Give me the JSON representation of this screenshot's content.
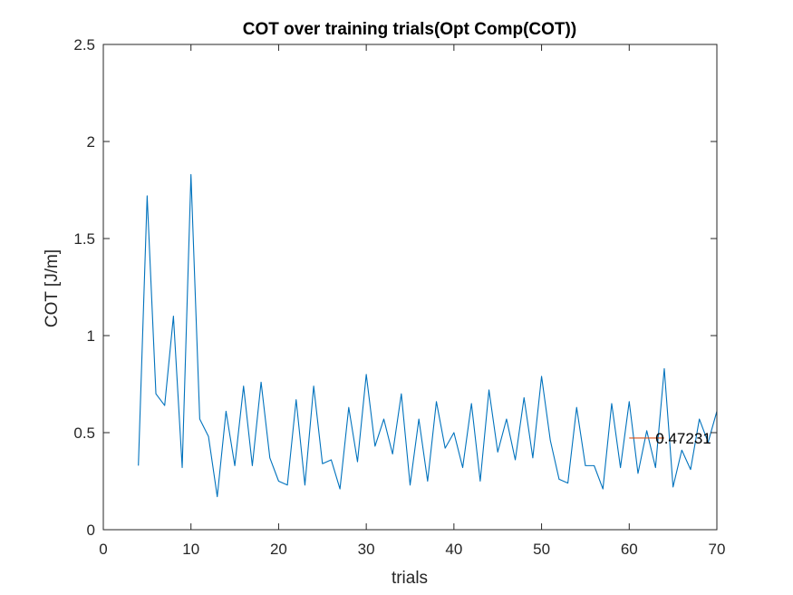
{
  "chart_data": {
    "type": "line",
    "title": "COT over training trials(Opt Comp(COT))",
    "xlabel": "trials",
    "ylabel": "COT [J/m]",
    "xlim": [
      0,
      70
    ],
    "ylim": [
      0,
      2.5
    ],
    "xticks": [
      0,
      10,
      20,
      30,
      40,
      50,
      60,
      70
    ],
    "yticks": [
      0,
      0.5,
      1,
      1.5,
      2,
      2.5
    ],
    "xtick_labels": [
      "0",
      "10",
      "20",
      "30",
      "40",
      "50",
      "60",
      "70"
    ],
    "ytick_labels": [
      "0",
      "0.5",
      "1",
      "1.5",
      "2",
      "2.5"
    ],
    "grid": false,
    "series": [
      {
        "color": "#0072bd",
        "x": [
          4,
          5,
          6,
          7,
          8,
          9,
          10,
          11,
          12,
          13,
          14,
          15,
          16,
          17,
          18,
          19,
          20,
          21,
          22,
          23,
          24,
          25,
          26,
          27,
          28,
          29,
          30,
          31,
          32,
          33,
          34,
          35,
          36,
          37,
          38,
          39,
          40,
          41,
          42,
          43,
          44,
          45,
          46,
          47,
          48,
          49,
          50,
          51,
          52,
          53,
          54,
          55,
          56,
          57,
          58,
          59,
          60,
          61,
          62,
          63,
          64,
          65,
          66,
          67,
          68,
          69,
          70
        ],
        "y": [
          0.33,
          1.72,
          0.7,
          0.64,
          1.1,
          0.32,
          1.83,
          0.57,
          0.48,
          0.17,
          0.61,
          0.33,
          0.74,
          0.33,
          0.76,
          0.37,
          0.25,
          0.23,
          0.67,
          0.23,
          0.74,
          0.34,
          0.36,
          0.21,
          0.63,
          0.35,
          0.8,
          0.43,
          0.57,
          0.39,
          0.7,
          0.23,
          0.57,
          0.25,
          0.66,
          0.42,
          0.5,
          0.32,
          0.65,
          0.25,
          0.72,
          0.4,
          0.57,
          0.36,
          0.68,
          0.37,
          0.79,
          0.46,
          0.26,
          0.24,
          0.63,
          0.33,
          0.33,
          0.21,
          0.65,
          0.32,
          0.66,
          0.29,
          0.51,
          0.32,
          0.83,
          0.22,
          0.41,
          0.31,
          0.57,
          0.45,
          0.61
        ]
      },
      {
        "color": "#d95319",
        "x": [
          60,
          64
        ],
        "y": [
          0.47231,
          0.47231
        ]
      }
    ],
    "annotations": [
      {
        "text": "0.47231",
        "x": 63,
        "y": 0.47231
      }
    ]
  }
}
